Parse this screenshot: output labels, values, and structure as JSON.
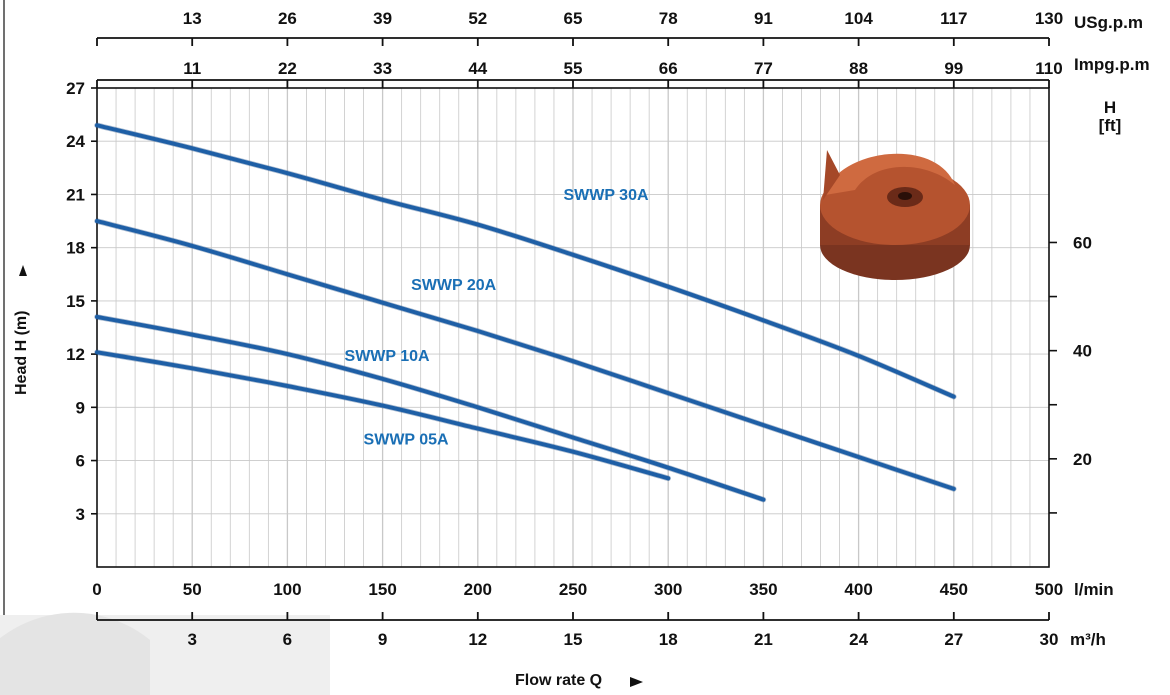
{
  "chart_data": {
    "type": "line",
    "title": "",
    "xlabel": "Flow rate Q",
    "ylabel": "Head H (m)",
    "right_ylabel_line1": "H",
    "right_ylabel_line2": "[ft]",
    "xlim": [
      0,
      500
    ],
    "ylim": [
      0,
      27
    ],
    "grid": true,
    "x_unit": "l/min",
    "x_ticks": [
      0,
      50,
      100,
      150,
      200,
      250,
      300,
      350,
      400,
      450,
      500
    ],
    "y_ticks": [
      3,
      6,
      9,
      12,
      15,
      18,
      21,
      24,
      27
    ],
    "right_axis": {
      "unit": "ft",
      "ticks": [
        20,
        40,
        60
      ],
      "conversion_m_to_ft": 3.28
    },
    "top_axis_usgpm": {
      "unit": "USg.p.m",
      "ticks": [
        13,
        26,
        39,
        52,
        65,
        78,
        91,
        104,
        117,
        130
      ]
    },
    "top_axis_impgpm": {
      "unit": "Impg.p.m",
      "ticks": [
        11,
        22,
        33,
        44,
        55,
        66,
        77,
        88,
        99,
        110
      ]
    },
    "bottom_axis_m3h": {
      "unit": "m³/h",
      "ticks": [
        3,
        6,
        9,
        12,
        15,
        18,
        21,
        24,
        27,
        30
      ]
    },
    "series": [
      {
        "name": "SWWP 30A",
        "x": [
          0,
          50,
          100,
          150,
          200,
          250,
          300,
          350,
          400,
          450
        ],
        "y": [
          24.9,
          23.6,
          22.2,
          20.7,
          19.3,
          17.6,
          15.8,
          13.9,
          11.9,
          9.6
        ]
      },
      {
        "name": "SWWP 20A",
        "x": [
          0,
          50,
          100,
          150,
          200,
          250,
          300,
          350,
          400,
          450
        ],
        "y": [
          19.5,
          18.1,
          16.5,
          14.9,
          13.3,
          11.6,
          9.8,
          8.0,
          6.2,
          4.4
        ]
      },
      {
        "name": "SWWP 10A",
        "x": [
          0,
          50,
          100,
          150,
          200,
          250,
          300,
          350
        ],
        "y": [
          14.1,
          13.1,
          12.0,
          10.6,
          9.0,
          7.3,
          5.6,
          3.8
        ]
      },
      {
        "name": "SWWP 05A",
        "x": [
          0,
          50,
          100,
          150,
          200,
          250,
          300
        ],
        "y": [
          12.1,
          11.2,
          10.2,
          9.1,
          7.8,
          6.5,
          5.0
        ]
      }
    ],
    "colors": {
      "curve": "#1e5fa6",
      "label": "#1a6fb5",
      "grid": "#c8c8c8",
      "impeller": "#a84a2c"
    }
  }
}
